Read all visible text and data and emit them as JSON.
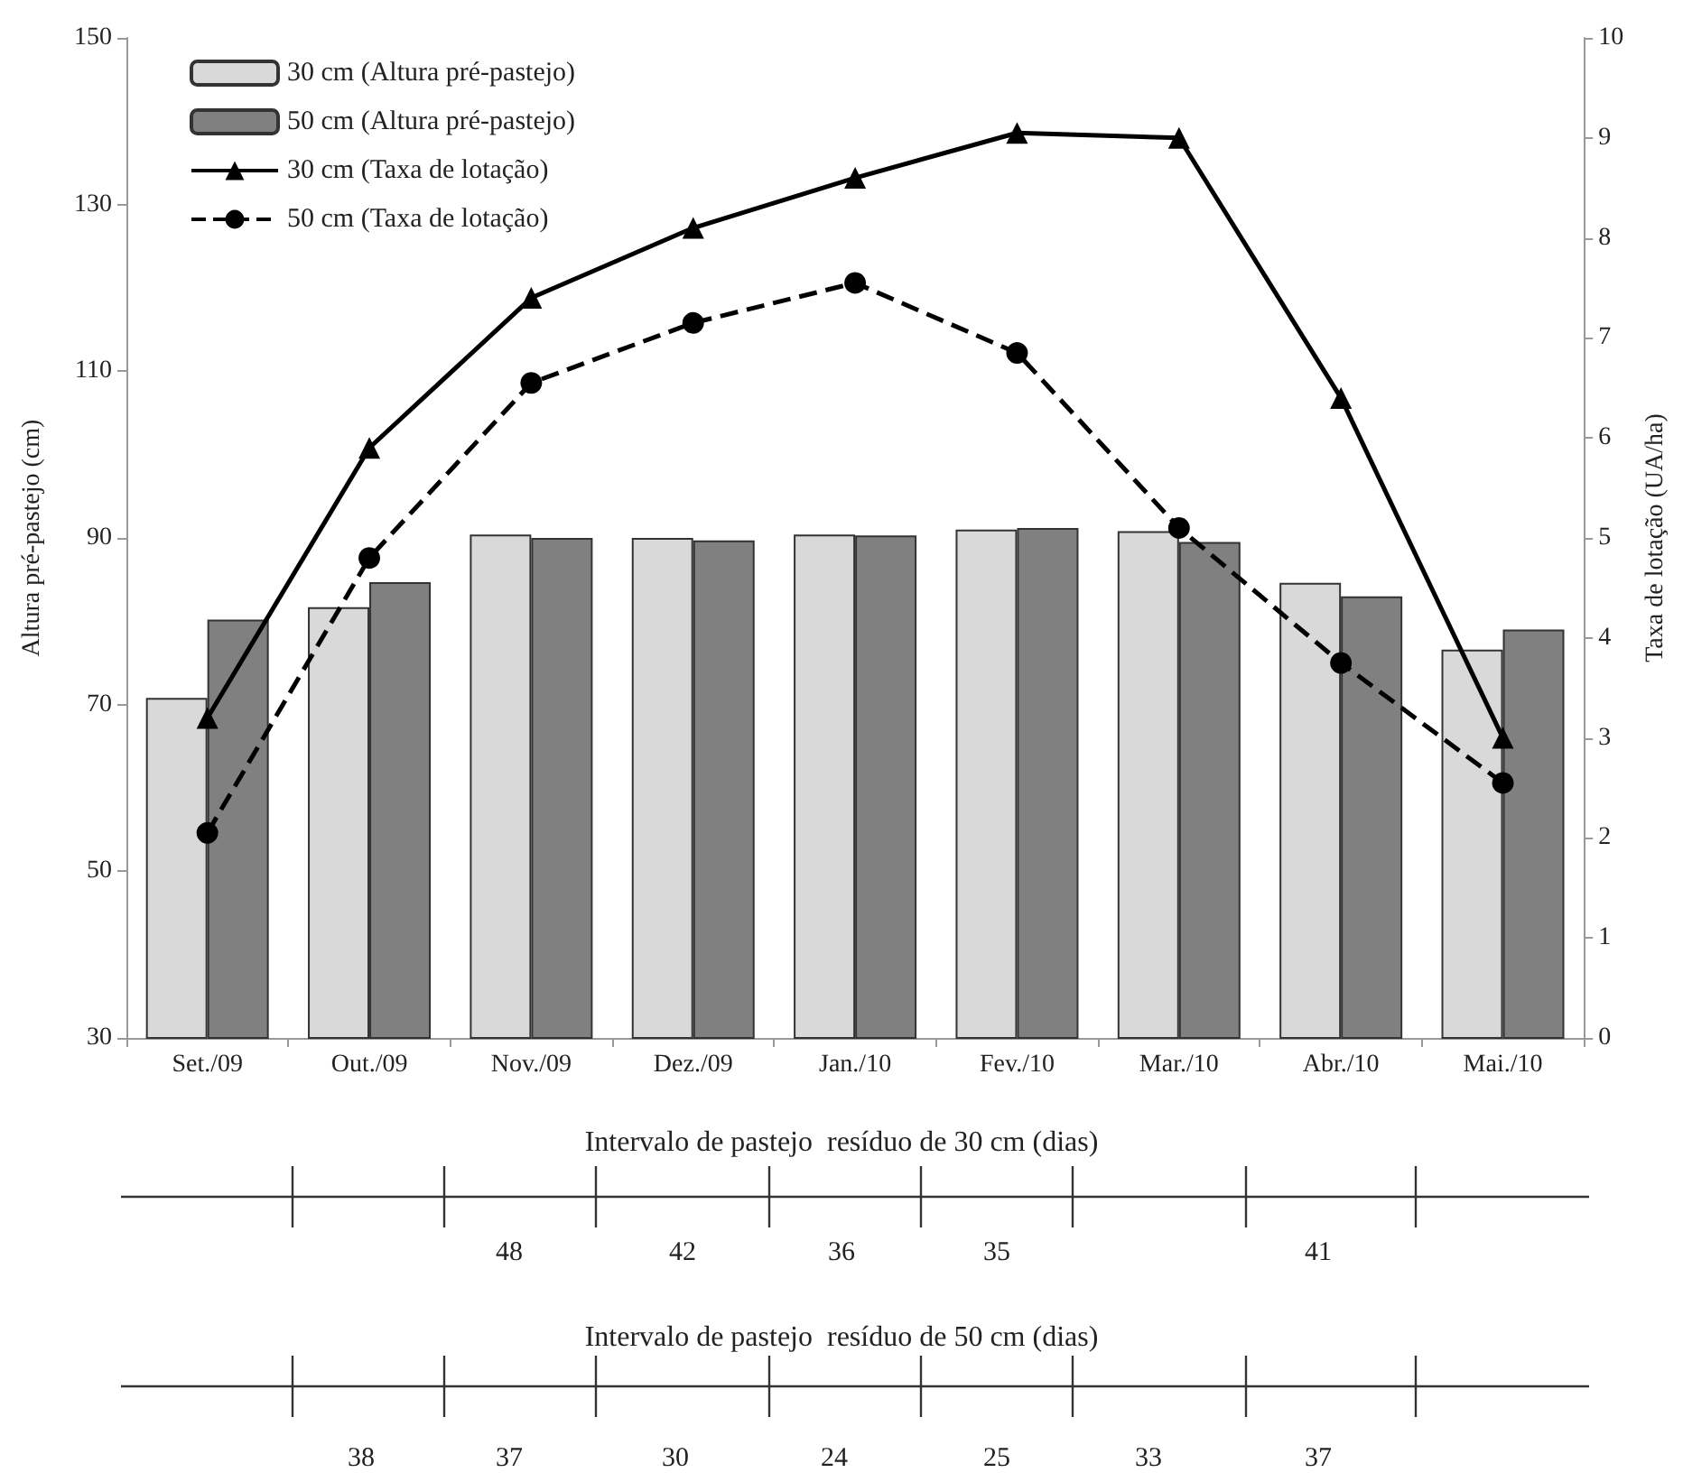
{
  "chart_data": {
    "type": "bar",
    "categories": [
      "Set./09",
      "Out./09",
      "Nov./09",
      "Dez./09",
      "Jan./10",
      "Fev./10",
      "Mar./10",
      "Abr./10",
      "Mai./10"
    ],
    "series": [
      {
        "name": "30 cm (Altura pré-pastejo)",
        "color": "#d9d9d9",
        "values": [
          70.8,
          81.7,
          90.4,
          90.0,
          90.4,
          91.0,
          90.8,
          84.6,
          76.6
        ]
      },
      {
        "name": "50 cm (Altura pré-pastejo)",
        "color": "#808080",
        "values": [
          80.2,
          84.7,
          90.0,
          89.7,
          90.3,
          91.2,
          89.5,
          83.0,
          79.0
        ]
      },
      {
        "name": "30 cm (Taxa de lotação)",
        "type": "line",
        "axis": "y2",
        "color": "#000000",
        "marker": "triangle",
        "line_style": "solid",
        "values": [
          3.2,
          5.9,
          7.4,
          8.1,
          8.6,
          9.05,
          9.0,
          6.4,
          3.0
        ]
      },
      {
        "name": "50 cm (Taxa de lotação)",
        "type": "line",
        "axis": "y2",
        "color": "#000000",
        "marker": "circle",
        "line_style": "dashed",
        "values": [
          2.05,
          4.8,
          6.55,
          7.15,
          7.55,
          6.85,
          5.1,
          3.75,
          2.55
        ]
      }
    ],
    "ylim": [
      30,
      150
    ],
    "yticks": [
      30,
      50,
      70,
      90,
      110,
      130,
      150
    ],
    "y2lim": [
      0,
      10
    ],
    "y2ticks": [
      0,
      1,
      2,
      3,
      4,
      5,
      6,
      7,
      8,
      9,
      10
    ],
    "ylabel": "Altura pré-pastejo (cm)",
    "y2label": "Taxa de lotação (UA/ha)",
    "legend": "top left",
    "annotations": [
      "Intervalo de pastejo  resíduo de 30 cm (dias)",
      "48",
      "42",
      "36",
      "35",
      "41",
      "Intervalo de pastejo  resíduo de 50 cm (dias)",
      "38",
      "37",
      "30",
      "24",
      "25",
      "33",
      "37"
    ]
  }
}
